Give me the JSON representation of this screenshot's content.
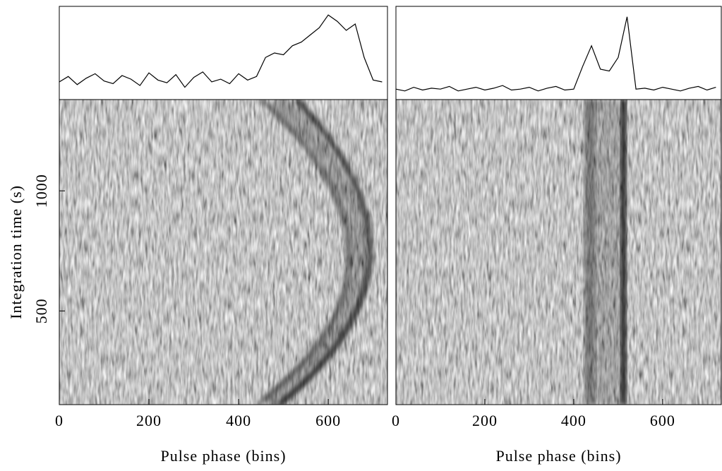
{
  "chart_data": [
    {
      "type": "line",
      "xlabel": "Pulse phase (bins)",
      "ylabel": "Integration time (s)",
      "xlim": [
        0,
        732
      ],
      "xticks": [
        0,
        200,
        400,
        600
      ],
      "ylim": [
        110,
        1380
      ],
      "yticks": [
        500,
        1000
      ],
      "y2lim": [
        0,
        1
      ],
      "x": [
        0,
        20,
        40,
        60,
        80,
        100,
        120,
        140,
        160,
        180,
        200,
        220,
        240,
        260,
        280,
        300,
        320,
        340,
        360,
        380,
        400,
        420,
        440,
        460,
        480,
        500,
        520,
        540,
        560,
        580,
        600,
        620,
        640,
        660,
        680,
        700,
        720
      ],
      "series": [
        {
          "color": "#000000",
          "axis": "y2",
          "values": [
            0.18,
            0.24,
            0.15,
            0.22,
            0.27,
            0.19,
            0.16,
            0.25,
            0.21,
            0.14,
            0.28,
            0.2,
            0.17,
            0.26,
            0.12,
            0.23,
            0.29,
            0.18,
            0.21,
            0.16,
            0.27,
            0.2,
            0.24,
            0.45,
            0.5,
            0.48,
            0.58,
            0.62,
            0.7,
            0.78,
            0.92,
            0.85,
            0.75,
            0.82,
            0.45,
            0.2,
            0.18
          ]
        }
      ]
    },
    {
      "type": "line",
      "xlabel": "Pulse phase (bins)",
      "xlim": [
        0,
        732
      ],
      "xticks": [
        0,
        200,
        400,
        600
      ],
      "ylim": [
        110,
        1380
      ],
      "y2lim": [
        0,
        1
      ],
      "x": [
        0,
        20,
        40,
        60,
        80,
        100,
        120,
        140,
        160,
        180,
        200,
        220,
        240,
        260,
        280,
        300,
        320,
        340,
        360,
        380,
        400,
        420,
        440,
        460,
        480,
        500,
        520,
        540,
        560,
        580,
        600,
        620,
        640,
        660,
        680,
        700,
        720
      ],
      "series": [
        {
          "color": "#000000",
          "axis": "y2",
          "values": [
            0.1,
            0.08,
            0.12,
            0.09,
            0.11,
            0.1,
            0.13,
            0.08,
            0.1,
            0.12,
            0.09,
            0.11,
            0.14,
            0.09,
            0.1,
            0.12,
            0.08,
            0.11,
            0.13,
            0.09,
            0.1,
            0.35,
            0.58,
            0.32,
            0.3,
            0.45,
            0.9,
            0.1,
            0.11,
            0.09,
            0.12,
            0.1,
            0.08,
            0.11,
            0.13,
            0.09,
            0.12
          ]
        }
      ]
    }
  ]
}
